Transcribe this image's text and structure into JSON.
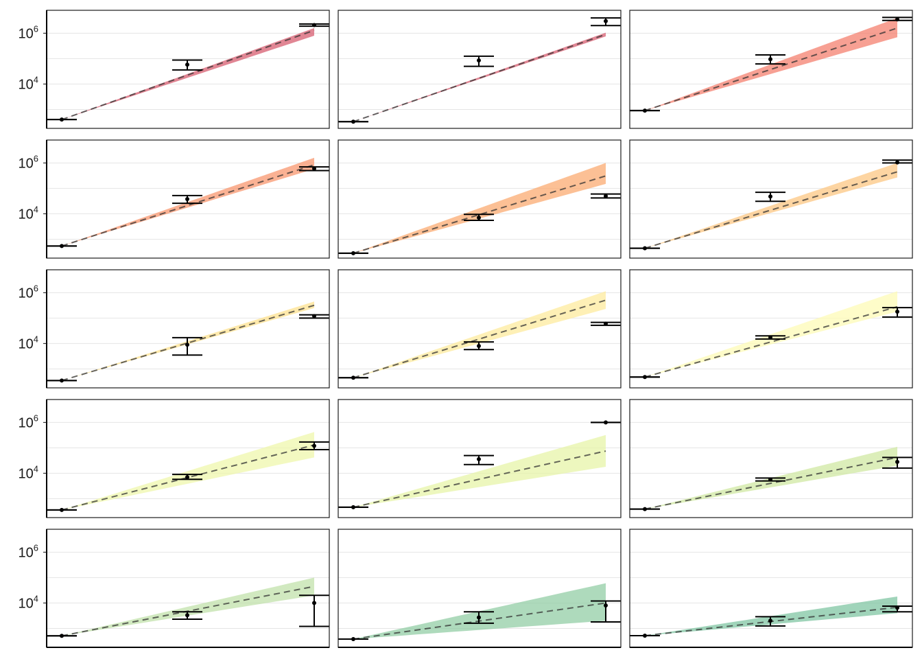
{
  "chart_data": {
    "type": "scatter",
    "layout": {
      "rows": 5,
      "cols": 3
    },
    "yscale": "log10",
    "ylim": [
      180,
      8000000
    ],
    "y_ticks": [
      {
        "value": 10000,
        "base": "10",
        "exp": "4"
      },
      {
        "value": 1000000,
        "base": "10",
        "exp": "6"
      }
    ],
    "y_minor_gridlines": [
      1000,
      100000
    ],
    "x": [
      1,
      2,
      3
    ],
    "grid": "horizontal",
    "colors": {
      "panel_border": "#1a1a1a",
      "gridline": "#e5e5e5",
      "fit_line": "#333333",
      "point": "#000000"
    },
    "panels": [
      {
        "fill": "#d6576b",
        "fit": [
          400,
          1300000
        ],
        "band_hi": [
          400,
          1600000
        ],
        "band_lo": [
          400,
          800000
        ],
        "points": [
          {
            "y": 400,
            "lo": 400,
            "hi": 400
          },
          {
            "y": 58000,
            "lo": 36000,
            "hi": 88000
          },
          {
            "y": 2100000,
            "lo": 1900000,
            "hi": 2300000
          }
        ]
      },
      {
        "fill": "#d6576b",
        "fit": [
          330,
          900000
        ],
        "band_hi": [
          330,
          1050000
        ],
        "band_lo": [
          330,
          750000
        ],
        "points": [
          {
            "y": 330,
            "lo": 330,
            "hi": 330
          },
          {
            "y": 85000,
            "lo": 50000,
            "hi": 125000
          },
          {
            "y": 3000000,
            "lo": 2000000,
            "hi": 4000000
          }
        ]
      },
      {
        "fill": "#f47c6a",
        "fit": [
          900,
          1600000
        ],
        "band_hi": [
          900,
          4000000
        ],
        "band_lo": [
          900,
          700000
        ],
        "points": [
          {
            "y": 900,
            "lo": 900,
            "hi": 900
          },
          {
            "y": 95000,
            "lo": 62000,
            "hi": 140000
          },
          {
            "y": 3500000,
            "lo": 3200000,
            "hi": 4200000
          }
        ]
      },
      {
        "fill": "#f8936a",
        "fit": [
          540,
          850000
        ],
        "band_hi": [
          540,
          1600000
        ],
        "band_lo": [
          540,
          580000
        ],
        "points": [
          {
            "y": 540,
            "lo": 540,
            "hi": 540
          },
          {
            "y": 38000,
            "lo": 26000,
            "hi": 52000
          },
          {
            "y": 600000,
            "lo": 500000,
            "hi": 700000
          }
        ]
      },
      {
        "fill": "#fba86c",
        "fit": [
          280,
          310000
        ],
        "band_hi": [
          280,
          1000000
        ],
        "band_lo": [
          280,
          150000
        ],
        "points": [
          {
            "y": 280,
            "lo": 280,
            "hi": 280
          },
          {
            "y": 7000,
            "lo": 5500,
            "hi": 9500
          },
          {
            "y": 50000,
            "lo": 42000,
            "hi": 60000
          }
        ]
      },
      {
        "fill": "#fcc57e",
        "fit": [
          440,
          450000
        ],
        "band_hi": [
          440,
          1000000
        ],
        "band_lo": [
          440,
          270000
        ],
        "points": [
          {
            "y": 440,
            "lo": 440,
            "hi": 440
          },
          {
            "y": 48000,
            "lo": 31000,
            "hi": 70000
          },
          {
            "y": 1050000,
            "lo": 1000000,
            "hi": 1300000
          }
        ]
      },
      {
        "fill": "#fde08a",
        "fit": [
          350,
          320000
        ],
        "band_hi": [
          350,
          450000
        ],
        "band_lo": [
          350,
          250000
        ],
        "points": [
          {
            "y": 350,
            "lo": 350,
            "hi": 350
          },
          {
            "y": 9000,
            "lo": 3500,
            "hi": 17000
          },
          {
            "y": 120000,
            "lo": 100000,
            "hi": 135000
          }
        ]
      },
      {
        "fill": "#fdea9a",
        "fit": [
          450,
          510000
        ],
        "band_hi": [
          450,
          1150000
        ],
        "band_lo": [
          450,
          230000
        ],
        "points": [
          {
            "y": 450,
            "lo": 450,
            "hi": 450
          },
          {
            "y": 8000,
            "lo": 5800,
            "hi": 11500
          },
          {
            "y": 60000,
            "lo": 52000,
            "hi": 68000
          }
        ]
      },
      {
        "fill": "#fefbb4",
        "fit": [
          480,
          280000
        ],
        "band_hi": [
          480,
          1150000
        ],
        "band_lo": [
          480,
          180000
        ],
        "points": [
          {
            "y": 480,
            "lo": 480,
            "hi": 480
          },
          {
            "y": 17500,
            "lo": 15000,
            "hi": 20000
          },
          {
            "y": 180000,
            "lo": 110000,
            "hi": 260000
          }
        ]
      },
      {
        "fill": "#eef7a9",
        "fit": [
          360,
          130000
        ],
        "band_hi": [
          360,
          420000
        ],
        "band_lo": [
          360,
          42000
        ],
        "points": [
          {
            "y": 360,
            "lo": 360,
            "hi": 360
          },
          {
            "y": 7000,
            "lo": 5800,
            "hi": 9000
          },
          {
            "y": 120000,
            "lo": 85000,
            "hi": 170000
          }
        ]
      },
      {
        "fill": "#e6f4a5",
        "fit": [
          460,
          75000
        ],
        "band_hi": [
          460,
          320000
        ],
        "band_lo": [
          460,
          18000
        ],
        "points": [
          {
            "y": 460,
            "lo": 460,
            "hi": 460
          },
          {
            "y": 36000,
            "lo": 22000,
            "hi": 50000
          },
          {
            "y": 1000000,
            "lo": 1000000,
            "hi": 1000000
          }
        ]
      },
      {
        "fill": "#cfe8a0",
        "fit": [
          390,
          42000
        ],
        "band_hi": [
          390,
          110000
        ],
        "band_lo": [
          390,
          20000
        ],
        "points": [
          {
            "y": 390,
            "lo": 390,
            "hi": 390
          },
          {
            "y": 5700,
            "lo": 5000,
            "hi": 6500
          },
          {
            "y": 28000,
            "lo": 16000,
            "hi": 42000
          }
        ]
      },
      {
        "fill": "#bfe0a8",
        "fit": [
          510,
          45000
        ],
        "band_hi": [
          510,
          100000
        ],
        "band_lo": [
          510,
          20000
        ],
        "points": [
          {
            "y": 510,
            "lo": 510,
            "hi": 510
          },
          {
            "y": 3300,
            "lo": 2300,
            "hi": 4500
          },
          {
            "y": 10000,
            "lo": 1200,
            "hi": 20000
          }
        ]
      },
      {
        "fill": "#8fcca2",
        "fit": [
          380,
          10000
        ],
        "band_hi": [
          380,
          60000
        ],
        "band_lo": [
          380,
          2000
        ],
        "points": [
          {
            "y": 380,
            "lo": 380,
            "hi": 380
          },
          {
            "y": 2700,
            "lo": 1600,
            "hi": 4500
          },
          {
            "y": 8000,
            "lo": 1800,
            "hi": 12000
          }
        ]
      },
      {
        "fill": "#7cc4a0",
        "fit": [
          520,
          6800
        ],
        "band_hi": [
          520,
          18000
        ],
        "band_lo": [
          520,
          4000
        ],
        "points": [
          {
            "y": 520,
            "lo": 520,
            "hi": 520
          },
          {
            "y": 2000,
            "lo": 1250,
            "hi": 2900
          },
          {
            "y": 6500,
            "lo": 4500,
            "hi": 7500
          }
        ]
      }
    ]
  }
}
